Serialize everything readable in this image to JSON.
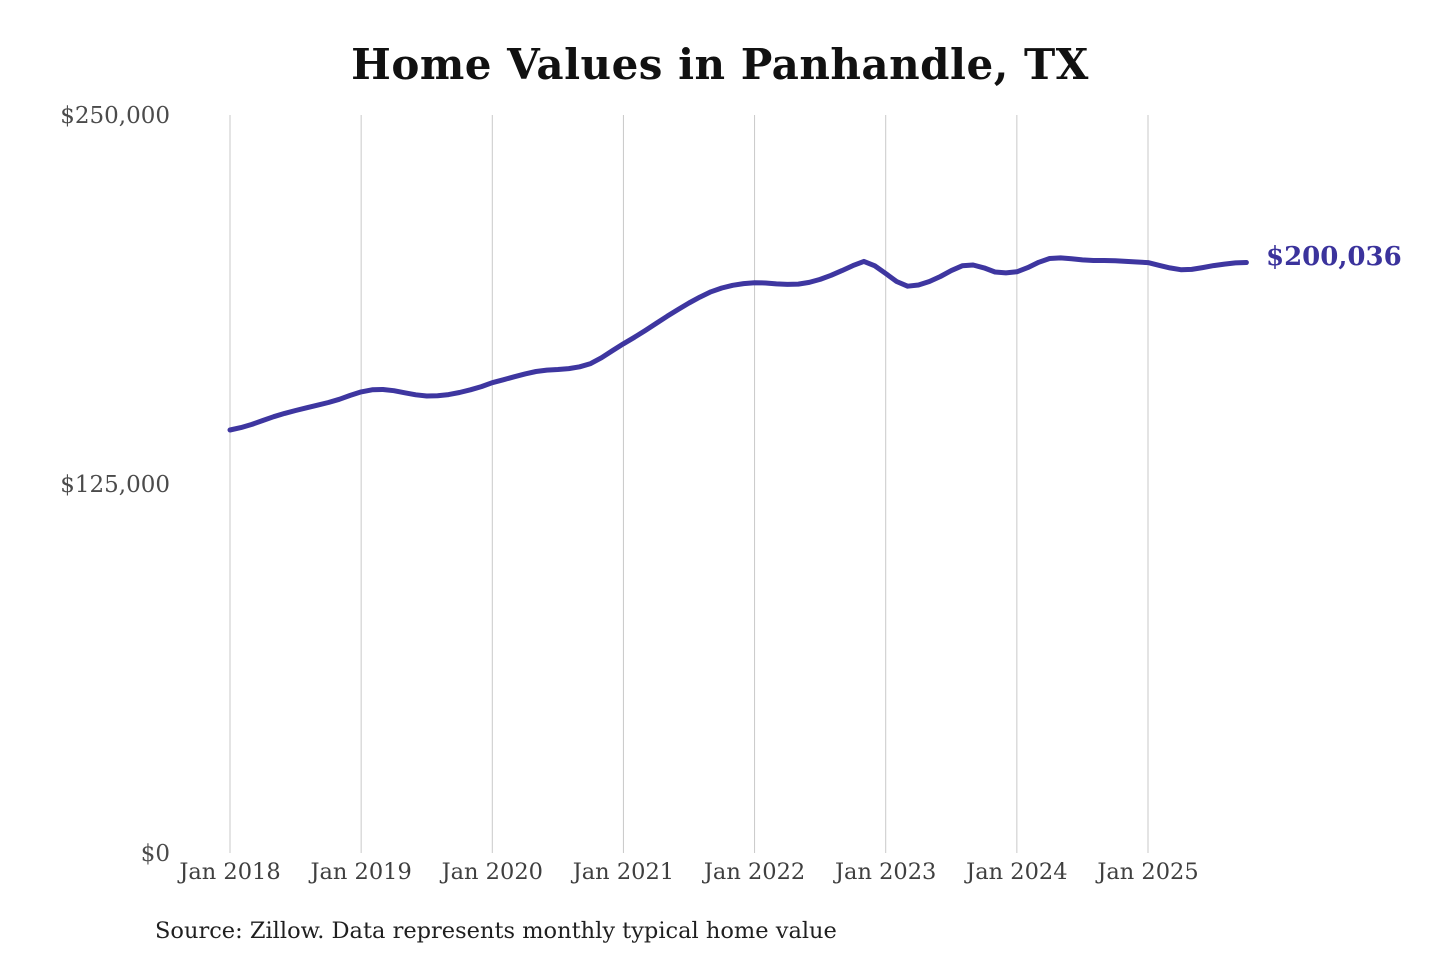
{
  "chart_data": {
    "type": "line",
    "title": "Home Values in Panhandle, TX",
    "xlabel": "",
    "ylabel": "",
    "ylim": [
      0,
      250000
    ],
    "grid": "vertical-only",
    "legend_position": "none",
    "frequency": "monthly",
    "x_start": "Jan 2018",
    "x_end": "Oct 2025",
    "x_tick_labels": [
      "Jan 2018",
      "Jan 2019",
      "Jan 2020",
      "Jan 2021",
      "Jan 2022",
      "Jan 2023",
      "Jan 2024",
      "Jan 2025"
    ],
    "x_tick_month_indices": [
      0,
      12,
      24,
      36,
      48,
      60,
      72,
      84
    ],
    "y_ticks": [
      {
        "value": 0,
        "label": "$0"
      },
      {
        "value": 125000,
        "label": "$125,000"
      },
      {
        "value": 250000,
        "label": "$250,000"
      }
    ],
    "line_color": "#3E36A0",
    "grid_color": "#C9C9C9",
    "y_tick_color": "#4B4B4B",
    "x_tick_color": "#3F3F3F",
    "end_label": {
      "text": "$200,036",
      "value": 200036,
      "color": "#3B339C"
    },
    "source_note": "Source: Zillow. Data represents monthly typical home value",
    "x_months": [
      "Jan 2018",
      "Feb 2018",
      "Mar 2018",
      "Apr 2018",
      "May 2018",
      "Jun 2018",
      "Jul 2018",
      "Aug 2018",
      "Sep 2018",
      "Oct 2018",
      "Nov 2018",
      "Dec 2018",
      "Jan 2019",
      "Feb 2019",
      "Mar 2019",
      "Apr 2019",
      "May 2019",
      "Jun 2019",
      "Jul 2019",
      "Aug 2019",
      "Sep 2019",
      "Oct 2019",
      "Nov 2019",
      "Dec 2019",
      "Jan 2020",
      "Feb 2020",
      "Mar 2020",
      "Apr 2020",
      "May 2020",
      "Jun 2020",
      "Jul 2020",
      "Aug 2020",
      "Sep 2020",
      "Oct 2020",
      "Nov 2020",
      "Dec 2020",
      "Jan 2021",
      "Feb 2021",
      "Mar 2021",
      "Apr 2021",
      "May 2021",
      "Jun 2021",
      "Jul 2021",
      "Aug 2021",
      "Sep 2021",
      "Oct 2021",
      "Nov 2021",
      "Dec 2021",
      "Jan 2022",
      "Feb 2022",
      "Mar 2022",
      "Apr 2022",
      "May 2022",
      "Jun 2022",
      "Jul 2022",
      "Aug 2022",
      "Sep 2022",
      "Oct 2022",
      "Nov 2022",
      "Dec 2022",
      "Jan 2023",
      "Feb 2023",
      "Mar 2023",
      "Apr 2023",
      "May 2023",
      "Jun 2023",
      "Jul 2023",
      "Aug 2023",
      "Sep 2023",
      "Oct 2023",
      "Nov 2023",
      "Dec 2023",
      "Jan 2024",
      "Feb 2024",
      "Mar 2024",
      "Apr 2024",
      "May 2024",
      "Jun 2024",
      "Jul 2024",
      "Aug 2024",
      "Sep 2024",
      "Oct 2024",
      "Nov 2024",
      "Dec 2024",
      "Jan 2025",
      "Feb 2025",
      "Mar 2025",
      "Apr 2025",
      "May 2025",
      "Jun 2025",
      "Jul 2025",
      "Aug 2025",
      "Sep 2025",
      "Oct 2025"
    ],
    "series": [
      {
        "name": "Monthly typical home value",
        "values": [
          143300,
          144100,
          145200,
          146500,
          147800,
          148900,
          149900,
          150800,
          151700,
          152600,
          153700,
          155000,
          156200,
          156900,
          157000,
          156600,
          155900,
          155200,
          154800,
          154900,
          155300,
          156000,
          156900,
          158000,
          159300,
          160300,
          161300,
          162300,
          163100,
          163600,
          163800,
          164100,
          164700,
          165800,
          167800,
          170200,
          172500,
          174700,
          177000,
          179400,
          181800,
          184100,
          186300,
          188300,
          190100,
          191400,
          192300,
          192900,
          193200,
          193100,
          192800,
          192600,
          192700,
          193300,
          194300,
          195700,
          197300,
          199000,
          200400,
          198900,
          196300,
          193600,
          192000,
          192400,
          193600,
          195300,
          197300,
          198900,
          199200,
          198200,
          196800,
          196500,
          196900,
          198300,
          200100,
          201400,
          201600,
          201300,
          200900,
          200700,
          200700,
          200600,
          200400,
          200200,
          200000,
          199100,
          198200,
          197600,
          197700,
          198300,
          199000,
          199500,
          199900,
          200036
        ]
      }
    ]
  }
}
